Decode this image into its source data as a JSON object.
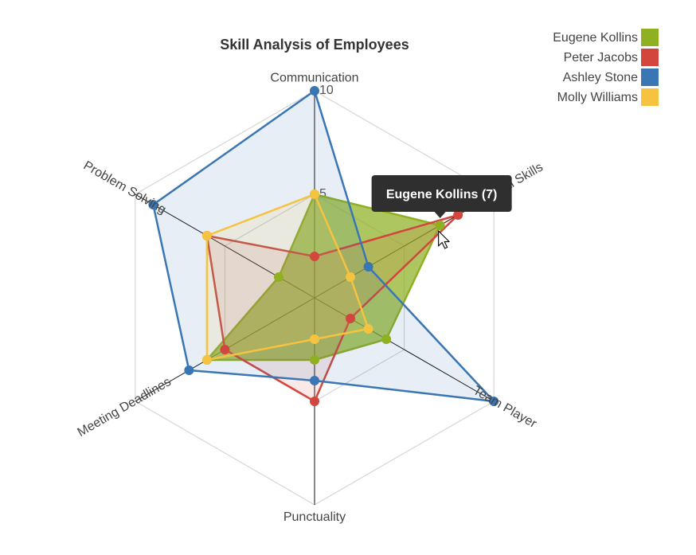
{
  "chart_data": {
    "type": "radar",
    "title": "Skill Analysis of Employees",
    "axes": [
      "Communication",
      "Technical Skills",
      "Team Player",
      "Punctuality",
      "Meeting Deadlines",
      "Problem Solving"
    ],
    "range": [
      0,
      10
    ],
    "ticks": [
      5,
      10
    ],
    "grid": true,
    "legend_position": "top-right",
    "series": [
      {
        "name": "Eugene Kollins",
        "color": "#8fb021",
        "values": [
          5,
          7,
          4,
          3,
          6,
          2
        ]
      },
      {
        "name": "Peter Jacobs",
        "color": "#d2463d",
        "values": [
          2,
          8,
          2,
          5,
          5,
          6
        ]
      },
      {
        "name": "Ashley Stone",
        "color": "#3a76b3",
        "values": [
          10,
          3,
          10,
          4,
          7,
          9
        ]
      },
      {
        "name": "Molly Williams",
        "color": "#f5c340",
        "values": [
          5,
          2,
          3,
          2,
          6,
          6
        ]
      }
    ],
    "tooltip": {
      "text": "Eugene Kollins (7)",
      "series": "Eugene Kollins",
      "axis": "Technical Skills"
    }
  }
}
